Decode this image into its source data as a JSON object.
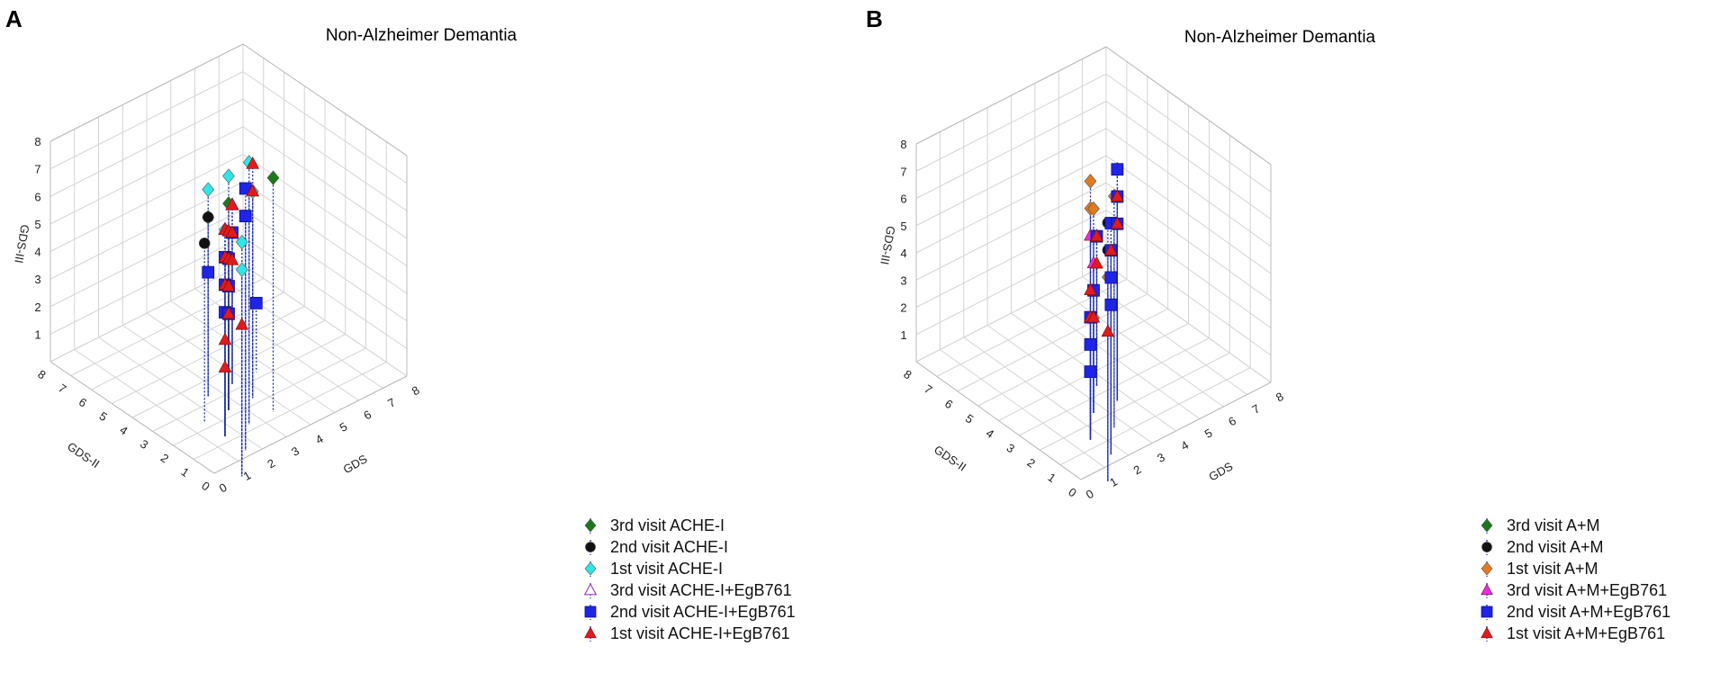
{
  "chart_data": [
    {
      "type": "scatter3d",
      "panel_label": "A",
      "title": "Non-Alzheimer Demantia",
      "xlabel": "GDS",
      "ylabel": "GDS-II",
      "zlabel": "GDS-III",
      "xlim": [
        0,
        8
      ],
      "ylim": [
        0,
        8
      ],
      "zlim": [
        0,
        8
      ],
      "x_ticks": [
        "0",
        "1",
        "2",
        "3",
        "4",
        "5",
        "6",
        "7",
        "8"
      ],
      "y_ticks": [
        "0",
        "1",
        "2",
        "3",
        "4",
        "5",
        "6",
        "7",
        "8"
      ],
      "z_ticks": [
        "1",
        "2",
        "3",
        "4",
        "5",
        "6",
        "7",
        "8"
      ],
      "grid": true,
      "legend_position": "bottom-right",
      "series": [
        {
          "name": "3rd visit ACHE-I",
          "marker": "diamond",
          "color": "#1a7a1a",
          "points": [
            [
              5,
              3,
              7
            ],
            [
              4,
              4,
              2
            ],
            [
              4,
              5,
              5
            ],
            [
              4,
              5,
              3
            ],
            [
              4,
              4,
              6
            ]
          ]
        },
        {
          "name": "2nd visit ACHE-I",
          "marker": "circle",
          "color": "#111111",
          "points": [
            [
              4,
              3,
              7
            ],
            [
              4,
              4,
              2
            ],
            [
              3,
              4,
              5
            ],
            [
              4,
              5,
              5
            ],
            [
              4,
              4,
              4
            ]
          ]
        },
        {
          "name": "1st visit ACHE-I",
          "marker": "diamond",
          "color": "#2ee6e6",
          "points": [
            [
              4,
              3,
              8
            ],
            [
              3,
              2,
              7
            ],
            [
              2,
              1,
              7
            ],
            [
              2,
              1,
              6
            ],
            [
              3,
              3,
              6
            ],
            [
              5,
              4,
              6
            ],
            [
              4,
              4,
              7
            ],
            [
              4,
              5,
              6
            ]
          ]
        },
        {
          "name": "3rd visit ACHE-I+EgB761",
          "marker": "triangle-open",
          "color": "#9b3fc7",
          "points": [
            [
              3,
              3,
              6
            ],
            [
              4,
              4,
              5
            ],
            [
              5,
              5,
              5
            ]
          ]
        },
        {
          "name": "2nd visit ACHE-I+EgB761",
          "marker": "square",
          "color": "#1f24e6",
          "points": [
            [
              3,
              2,
              8
            ],
            [
              3,
              3,
              5
            ],
            [
              3,
              3,
              4
            ],
            [
              3,
              3,
              3
            ],
            [
              4,
              4,
              4
            ],
            [
              4,
              4,
              3
            ],
            [
              5,
              5,
              4
            ],
            [
              4,
              4,
              2
            ],
            [
              4,
              5,
              3
            ],
            [
              6,
              5,
              1
            ],
            [
              3,
              2,
              7
            ]
          ]
        },
        {
          "name": "1st visit ACHE-I+EgB761",
          "marker": "triangle",
          "color": "#e01b1b",
          "points": [
            [
              2,
              1,
              4
            ],
            [
              3,
              3,
              2
            ],
            [
              3,
              3,
              1
            ],
            [
              3,
              3,
              6
            ],
            [
              3,
              3,
              5
            ],
            [
              3,
              3,
              4
            ],
            [
              4,
              4,
              5
            ],
            [
              4,
              4,
              4
            ],
            [
              4,
              4,
              3
            ],
            [
              5,
              4,
              7
            ],
            [
              5,
              4,
              6
            ],
            [
              5,
              5,
              5
            ],
            [
              5,
              5,
              4
            ],
            [
              5,
              5,
              3
            ],
            [
              4,
              4,
              2
            ]
          ]
        }
      ]
    },
    {
      "type": "scatter3d",
      "panel_label": "B",
      "title": "Non-Alzheimer Demantia",
      "xlabel": "GDS",
      "ylabel": "GDS-II",
      "zlabel": "GDS-III",
      "xlim": [
        0,
        8
      ],
      "ylim": [
        0,
        8
      ],
      "zlim": [
        0,
        8
      ],
      "x_ticks": [
        "0",
        "1",
        "2",
        "3",
        "4",
        "5",
        "6",
        "7",
        "8"
      ],
      "y_ticks": [
        "0",
        "1",
        "2",
        "3",
        "4",
        "5",
        "6",
        "7",
        "8"
      ],
      "z_ticks": [
        "1",
        "2",
        "3",
        "4",
        "5",
        "6",
        "7",
        "8"
      ],
      "grid": true,
      "legend_position": "bottom-right",
      "series": [
        {
          "name": "3rd visit A+M",
          "marker": "diamond",
          "color": "#1a7a1a",
          "points": [
            [
              4,
              4,
              5
            ],
            [
              5,
              5,
              4
            ]
          ]
        },
        {
          "name": "2nd visit A+M",
          "marker": "circle",
          "color": "#111111",
          "points": [
            [
              2,
              1,
              8
            ],
            [
              2,
              1,
              7
            ],
            [
              4,
              3,
              6
            ],
            [
              4,
              4,
              5
            ]
          ]
        },
        {
          "name": "1st visit A+M",
          "marker": "diamond",
          "color": "#e07a22",
          "points": [
            [
              3,
              3,
              8
            ],
            [
              3,
              3,
              7
            ],
            [
              4,
              3,
              7
            ],
            [
              2,
              1,
              6
            ],
            [
              5,
              4,
              6
            ],
            [
              5,
              4,
              7
            ],
            [
              4,
              4,
              6
            ],
            [
              4,
              4,
              2
            ]
          ]
        },
        {
          "name": "3rd visit A+M+EgB761",
          "marker": "triangle",
          "color": "#e62ee6",
          "points": [
            [
              3,
              3,
              6
            ],
            [
              4,
              4,
              4
            ]
          ]
        },
        {
          "name": "2nd visit A+M+EgB761",
          "marker": "square",
          "color": "#1f24e6",
          "points": [
            [
              3,
              2,
              7
            ],
            [
              3,
              2,
              6
            ],
            [
              3,
              2,
              5
            ],
            [
              3,
              2,
              4
            ],
            [
              3,
              3,
              3
            ],
            [
              3,
              3,
              2
            ],
            [
              3,
              3,
              1
            ],
            [
              5,
              4,
              7
            ],
            [
              5,
              4,
              6
            ],
            [
              5,
              4,
              5
            ],
            [
              4,
              4,
              3
            ],
            [
              5,
              5,
              4
            ]
          ]
        },
        {
          "name": "1st visit A+M+EgB761",
          "marker": "triangle",
          "color": "#e01b1b",
          "points": [
            [
              2,
              1,
              4
            ],
            [
              3,
              2,
              6
            ],
            [
              3,
              3,
              4
            ],
            [
              3,
              3,
              3
            ],
            [
              5,
              4,
              6
            ],
            [
              5,
              4,
              5
            ],
            [
              5,
              5,
              4
            ],
            [
              5,
              5,
              3
            ],
            [
              4,
              4,
              2
            ]
          ]
        }
      ]
    }
  ]
}
